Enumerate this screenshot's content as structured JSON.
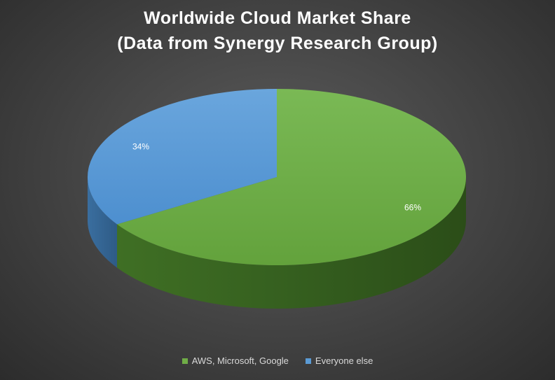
{
  "chart_data": {
    "type": "pie",
    "title_lines": [
      "Worldwide Cloud Market Share",
      "(Data from Synergy Research Group)"
    ],
    "categories": [
      "AWS, Microsoft, Google",
      "Everyone else"
    ],
    "values": [
      66,
      34
    ],
    "data_labels": [
      "66%",
      "34%"
    ],
    "colors": [
      "#70ad47",
      "#5b9bd5"
    ],
    "legend_position": "bottom",
    "style": "3d"
  }
}
